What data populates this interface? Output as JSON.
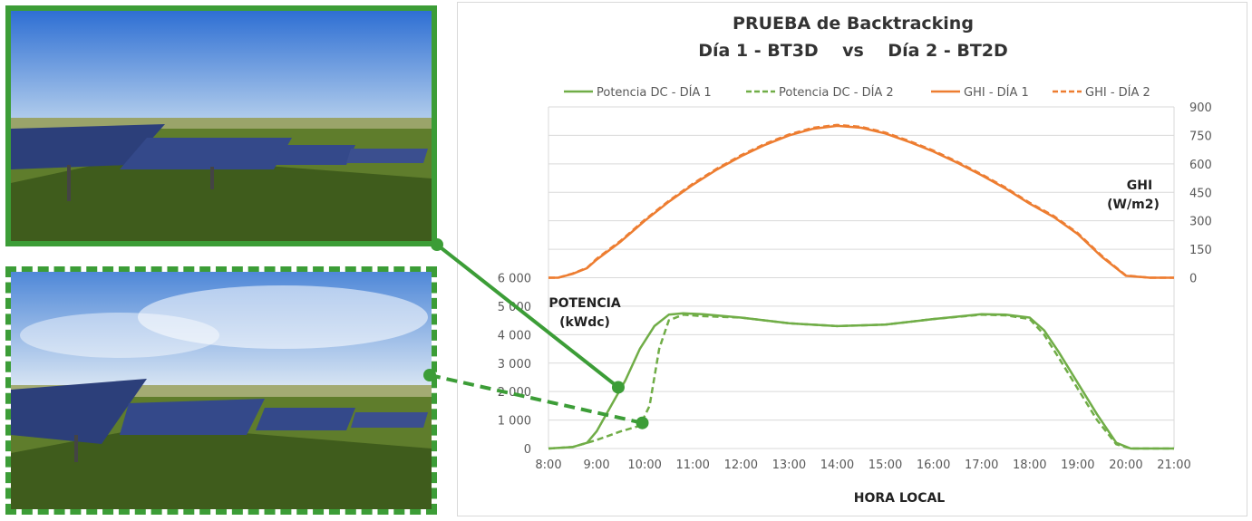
{
  "colors": {
    "green": "#70ad47",
    "orange": "#ed7d31",
    "frame_green": "#3c9d37",
    "grid": "#d9d9d9"
  },
  "photos": [
    {
      "description_icon": "solar-tracker-photo",
      "frame_style": "solid"
    },
    {
      "description_icon": "solar-tracker-photo",
      "frame_style": "dashed"
    }
  ],
  "chart_data": {
    "type": "line",
    "title_line1": "PRUEBA de Backtracking",
    "title_line2": "Día 1 - BT3D    vs    Día 2 - BT2D",
    "xlabel": "HORA LOCAL",
    "ylabel_left_1": "POTENCIA",
    "ylabel_left_2": "(kWdc)",
    "ylabel_right_1": "GHI",
    "ylabel_right_2": "(W/m2)",
    "x_ticks": [
      "8:00",
      "9:00",
      "10:00",
      "11:00",
      "12:00",
      "13:00",
      "14:00",
      "15:00",
      "16:00",
      "17:00",
      "18:00",
      "19:00",
      "20:00",
      "21:00"
    ],
    "y_left_ticks": [
      "0",
      "1 000",
      "2 000",
      "3 000",
      "4 000",
      "5 000",
      "6 000"
    ],
    "y_right_ticks": [
      "0",
      "150",
      "300",
      "450",
      "600",
      "750",
      "900"
    ],
    "ylim_left": [
      0,
      12000
    ],
    "ylim_right": [
      -900,
      900
    ],
    "xlim": [
      8,
      21
    ],
    "legend_position": "top",
    "series": [
      {
        "name": "Potencia DC - DÍA 1",
        "axis": "left",
        "style": "solid",
        "color": "#70ad47",
        "x": [
          8.0,
          8.5,
          8.8,
          9.0,
          9.3,
          9.6,
          9.9,
          10.2,
          10.5,
          10.8,
          11.2,
          12.0,
          13.0,
          14.0,
          15.0,
          16.0,
          17.0,
          17.5,
          18.0,
          18.3,
          18.6,
          19.0,
          19.4,
          19.8,
          20.1,
          20.5,
          21.0
        ],
        "y": [
          0,
          50,
          200,
          600,
          1500,
          2400,
          3500,
          4300,
          4700,
          4750,
          4720,
          4600,
          4400,
          4300,
          4350,
          4550,
          4720,
          4700,
          4600,
          4150,
          3400,
          2300,
          1200,
          200,
          0,
          0,
          0
        ]
      },
      {
        "name": "Potencia DC - DÍA 2",
        "axis": "left",
        "style": "dashed",
        "color": "#70ad47",
        "x": [
          8.0,
          8.5,
          9.0,
          9.5,
          9.9,
          10.1,
          10.3,
          10.5,
          10.8,
          11.2,
          12.0,
          13.0,
          14.0,
          15.0,
          16.0,
          17.0,
          17.5,
          18.0,
          18.3,
          18.6,
          19.0,
          19.4,
          19.8,
          20.1,
          20.5,
          21.0
        ],
        "y": [
          0,
          50,
          300,
          600,
          800,
          1500,
          3500,
          4500,
          4700,
          4650,
          4600,
          4400,
          4300,
          4350,
          4550,
          4700,
          4680,
          4550,
          4000,
          3200,
          2100,
          1000,
          150,
          0,
          0,
          0
        ]
      },
      {
        "name": "GHI - DÍA 1",
        "axis": "right",
        "style": "solid",
        "color": "#ed7d31",
        "x": [
          8.0,
          8.2,
          8.5,
          8.8,
          9.0,
          9.5,
          10.0,
          10.5,
          11.0,
          11.5,
          12.0,
          12.5,
          13.0,
          13.5,
          14.0,
          14.5,
          15.0,
          15.5,
          16.0,
          16.5,
          17.0,
          17.5,
          18.0,
          18.5,
          19.0,
          19.5,
          20.0,
          20.5,
          21.0
        ],
        "y": [
          0,
          0,
          20,
          50,
          95,
          190,
          300,
          400,
          490,
          570,
          640,
          700,
          750,
          785,
          800,
          790,
          760,
          715,
          665,
          605,
          540,
          470,
          390,
          320,
          230,
          110,
          10,
          0,
          0
        ]
      },
      {
        "name": "GHI - DÍA 2",
        "axis": "right",
        "style": "dashed",
        "color": "#ed7d31",
        "x": [
          8.0,
          8.2,
          8.5,
          8.8,
          9.0,
          9.5,
          10.0,
          10.5,
          11.0,
          11.5,
          12.0,
          12.5,
          13.0,
          13.5,
          14.0,
          14.5,
          15.0,
          15.5,
          16.0,
          16.5,
          17.0,
          17.5,
          18.0,
          18.5,
          19.0,
          19.5,
          20.0,
          20.5,
          21.0
        ],
        "y": [
          0,
          0,
          22,
          52,
          100,
          195,
          305,
          405,
          495,
          575,
          645,
          705,
          755,
          790,
          805,
          795,
          765,
          720,
          670,
          610,
          545,
          475,
          395,
          325,
          235,
          115,
          12,
          0,
          0
        ]
      }
    ],
    "markers": [
      {
        "x": 9.45,
        "y": 2150,
        "from": "photo1"
      },
      {
        "x": 9.95,
        "y": 900,
        "from": "photo2"
      }
    ]
  }
}
